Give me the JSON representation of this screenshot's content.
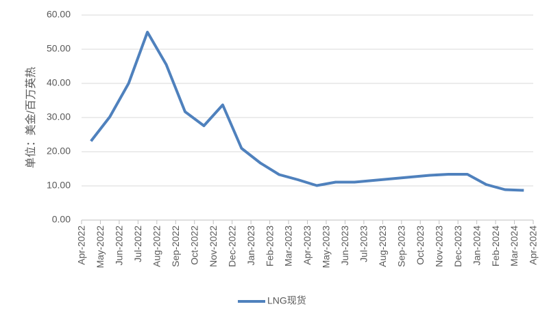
{
  "chart_data": {
    "type": "line",
    "y_label": "单位：美金/百万英热",
    "categories": [
      "Apr-2022",
      "May-2022",
      "Jun-2022",
      "Jul-2022",
      "Aug-2022",
      "Sep-2022",
      "Oct-2022",
      "Nov-2022",
      "Dec-2022",
      "Jan-2023",
      "Feb-2023",
      "Mar-2023",
      "Apr-2023",
      "May-2023",
      "Jun-2023",
      "Jul-2023",
      "Aug-2023",
      "Sep-2023",
      "Oct-2023",
      "Nov-2023",
      "Dec-2023",
      "Jan-2024",
      "Feb-2024",
      "Mar-2024",
      "Apr-2024"
    ],
    "series": [
      {
        "name": "LNG现货",
        "color": "#4f81bd",
        "values": [
          23.1,
          30.2,
          40,
          55,
          45.5,
          31.7,
          27.6,
          33.7,
          21,
          16.7,
          13.3,
          11.8,
          10.1,
          11.1,
          11.1,
          11.6,
          12.1,
          12.6,
          13.1,
          13.4,
          13.4,
          10.4,
          8.9,
          8.7,
          null
        ]
      }
    ],
    "ylim": [
      0,
      60
    ],
    "yticks": [
      {
        "value": 0,
        "label": "0.00"
      },
      {
        "value": 10,
        "label": "10.00"
      },
      {
        "value": 20,
        "label": "20.00"
      },
      {
        "value": 30,
        "label": "30.00"
      },
      {
        "value": 40,
        "label": "40.00"
      },
      {
        "value": 50,
        "label": "50.00"
      },
      {
        "value": 60,
        "label": "60.00"
      }
    ],
    "grid": true,
    "legend": "bottom"
  }
}
